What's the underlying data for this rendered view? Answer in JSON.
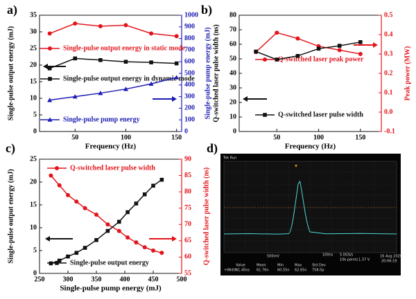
{
  "chart_data": [
    {
      "type": "line",
      "label": "a)",
      "xlabel": "Frequency (Hz)",
      "ylabel": "Single-pulse output energy (mJ)",
      "y2label": "Single-pulse pump energy (mJ)",
      "x": [
        25,
        50,
        75,
        100,
        125,
        150
      ],
      "xlim": [
        15,
        155
      ],
      "xticks": [
        50,
        100,
        150
      ],
      "ylim": [
        0,
        35
      ],
      "yticks": [
        0,
        5,
        10,
        15,
        20,
        25,
        30,
        35
      ],
      "y2lim": [
        0,
        1000
      ],
      "y2ticks": [
        0,
        100,
        200,
        300,
        400,
        500,
        600,
        700,
        800,
        900,
        1000
      ],
      "y2color": "#1c1cb4",
      "series": [
        {
          "name": "Single-pulse output energy in  static mode",
          "color": "#e3141b",
          "marker": "circle",
          "values": [
            29.5,
            32.5,
            31.7,
            32,
            29.5,
            28.7
          ]
        },
        {
          "name": "Single-pulse output energy in dynamic  mode",
          "color": "#111111",
          "marker": "square",
          "values": [
            19,
            22,
            21.5,
            21,
            20.8,
            20.5
          ]
        },
        {
          "name": "Single-pulse pump energy",
          "color": "#1c1cb4",
          "marker": "triangle",
          "axis": "y2",
          "values": [
            270,
            300,
            330,
            365,
            410,
            465
          ]
        }
      ]
    },
    {
      "type": "line",
      "label": "b)",
      "xlabel": "Frequency (Hz)",
      "ylabel": "Q-switched laser pulse width (ns)",
      "y2label": "Peak power (MW)",
      "x": [
        25,
        50,
        75,
        100,
        125,
        150
      ],
      "xlim": [
        5,
        175
      ],
      "xticks": [
        50,
        100,
        150
      ],
      "ylim": [
        0,
        80
      ],
      "yticks": [
        0,
        10,
        20,
        30,
        40,
        50,
        60,
        70,
        80
      ],
      "y2lim": [
        -0.1,
        0.5
      ],
      "y2ticks": [
        -0.1,
        {
          "value": 0,
          "label": "0.0"
        },
        0.1,
        0.2,
        0.3,
        0.4,
        0.5
      ],
      "y2color": "#e3141b",
      "series": [
        {
          "name": "Q-switched laser peak power",
          "color": "#e3141b",
          "marker": "circle",
          "axis": "y2",
          "values": [
            0.31,
            0.41,
            0.38,
            0.34,
            0.32,
            0.3
          ]
        },
        {
          "name": "Q-switched laser pulse width",
          "color": "#111111",
          "marker": "square",
          "values": [
            55,
            49.5,
            52,
            57,
            59,
            61.5
          ]
        }
      ]
    },
    {
      "type": "line",
      "label": "c)",
      "xlabel": "Single-pulse pump energy (mJ)",
      "ylabel": "Single-pulse output energy (mJ)",
      "y2label": "Q-switched laser pulse width (ns)",
      "x": [
        270,
        285,
        300,
        315,
        330,
        350,
        370,
        390,
        405,
        420,
        435,
        450,
        465
      ],
      "xlim": [
        250,
        500
      ],
      "xticks": [
        250,
        300,
        350,
        400,
        450,
        500
      ],
      "ylim": [
        0,
        25
      ],
      "yticks": [
        0,
        5,
        10,
        15,
        20,
        25
      ],
      "y2lim": [
        55,
        90
      ],
      "y2ticks": [
        55,
        60,
        65,
        70,
        75,
        80,
        85,
        90
      ],
      "y2color": "#e3141b",
      "series": [
        {
          "name": "Q-switched laser pulse width",
          "color": "#e3141b",
          "marker": "circle",
          "axis": "y2",
          "values": [
            85,
            82,
            79,
            77,
            75,
            73,
            70,
            68,
            66,
            64.5,
            63,
            62,
            61.3
          ]
        },
        {
          "name": "Single-pulse output energy",
          "color": "#111111",
          "marker": "square",
          "values": [
            2.2,
            2.8,
            3.7,
            4.5,
            5.6,
            7.3,
            9.3,
            11.3,
            13.4,
            15.3,
            17.3,
            19.2,
            20.5
          ]
        }
      ]
    },
    {
      "type": "scope",
      "label": "d)",
      "header": "Tek Run",
      "channel_scale": "500mV",
      "timebase": "100ns",
      "sample_rate": "5.0GS/s",
      "record_length": "10k points",
      "trigger_level": "1.37 V",
      "date": "16 Aug 2020",
      "time": "20:06:19",
      "measurement": {
        "columns": [
          "Value",
          "Mean",
          "Min",
          "Max",
          "Std Dev"
        ],
        "name": "+Width",
        "values": [
          "61.40ns",
          "61.76n",
          "60.55n",
          "62.65n",
          "758.0p"
        ]
      }
    }
  ]
}
